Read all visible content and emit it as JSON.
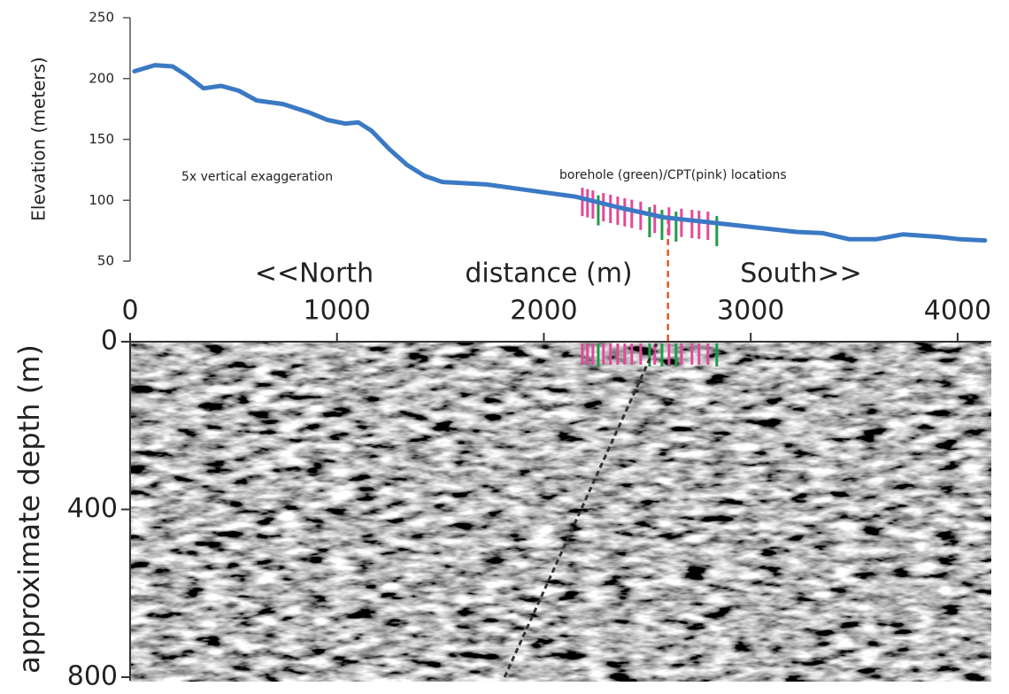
{
  "chart_data": [
    {
      "type": "line",
      "ylabel": "Elevation (meters)",
      "annotations": [
        "5x vertical exaggeration",
        "borehole (green)/CPT(pink) locations"
      ],
      "x": [
        21,
        120,
        205,
        270,
        355,
        440,
        526,
        612,
        740,
        868,
        954,
        1039,
        1104,
        1168,
        1253,
        1339,
        1424,
        1510,
        1724,
        1938,
        2151,
        2365,
        2579,
        2793,
        3007,
        3221,
        3349,
        3477,
        3606,
        3734,
        3905,
        4012,
        4132
      ],
      "values": [
        206,
        211,
        210,
        203,
        192,
        194,
        190,
        182,
        179,
        172,
        166,
        163,
        164,
        157,
        142,
        129,
        120,
        115,
        113,
        108,
        103,
        94,
        86,
        82,
        78,
        74,
        73,
        68,
        68,
        72,
        70,
        68,
        67
      ],
      "color": "#3b79c4",
      "xlim": [
        0,
        4150
      ],
      "ylim": [
        50,
        250
      ],
      "yticks": [
        50,
        100,
        150,
        200,
        250
      ],
      "boreholes": {
        "color": "#1f9a48",
        "x": [
          2263,
          2511,
          2571,
          2639,
          2836
        ]
      },
      "cpts": {
        "color": "#e2499c",
        "x": [
          2186,
          2211,
          2237,
          2288,
          2322,
          2357,
          2391,
          2425,
          2468,
          2536,
          2605,
          2665,
          2716,
          2750,
          2793
        ]
      },
      "dashed_line": {
        "x": 2600,
        "color": "#e3572c"
      }
    },
    {
      "type": "seismic",
      "xlabel_parts": [
        "<<North",
        "distance (m)",
        "South>>"
      ],
      "ylabel": "approximate depth (m)",
      "xlim": [
        0,
        4150
      ],
      "xticks": [
        0,
        1000,
        2000,
        3000,
        4000
      ],
      "ylim": [
        0,
        800
      ],
      "yticks": [
        0,
        400,
        800
      ],
      "y_inverted": true,
      "fault": {
        "x": [
          1810,
          2545
        ],
        "depth": [
          800,
          5
        ],
        "color": "#333333"
      }
    }
  ]
}
